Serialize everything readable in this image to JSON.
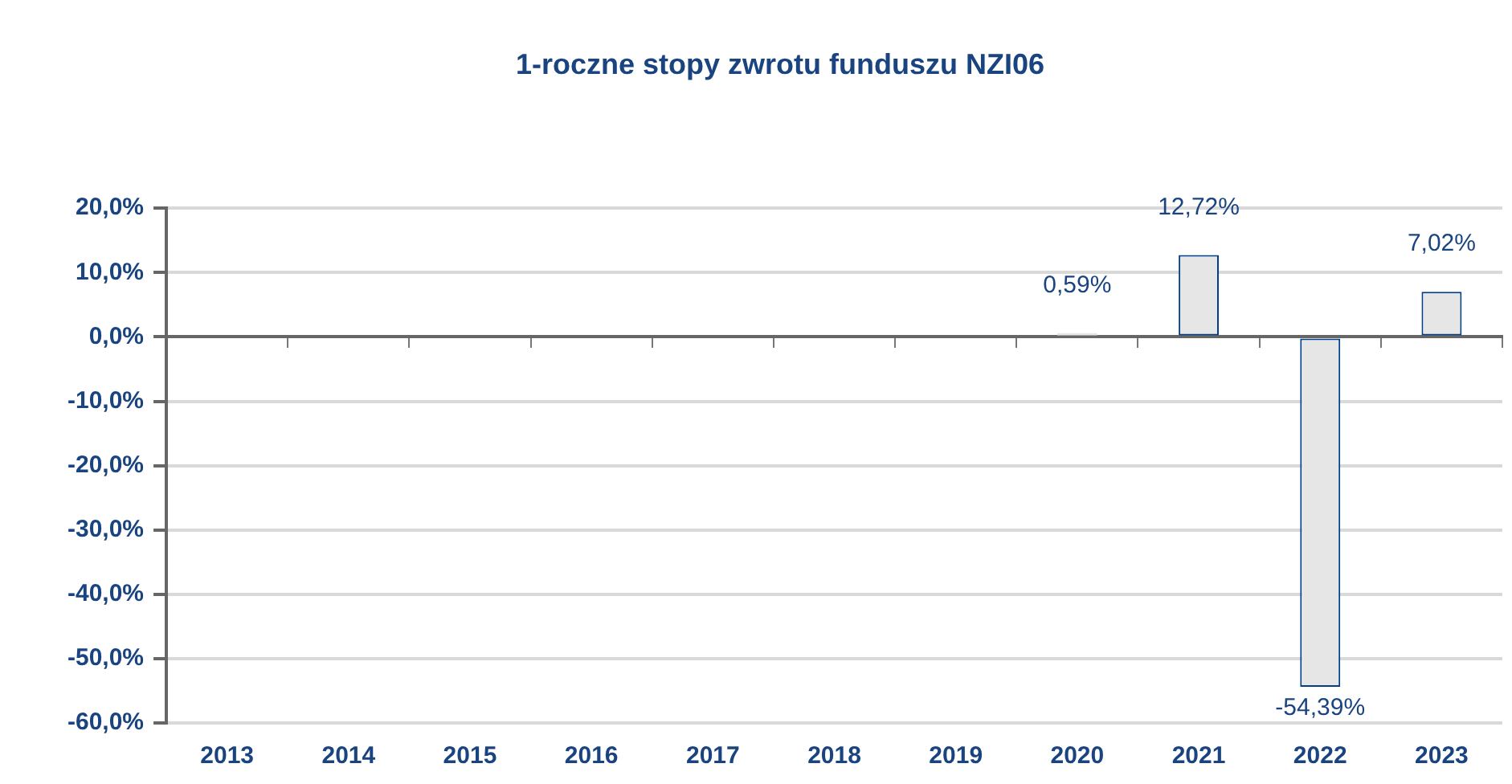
{
  "chart_data": {
    "type": "bar",
    "title": "1-roczne stopy zwrotu funduszu NZI06",
    "categories": [
      "2013",
      "2014",
      "2015",
      "2016",
      "2017",
      "2018",
      "2019",
      "2020",
      "2021",
      "2022",
      "2023"
    ],
    "series": [
      {
        "color": "#e6e6e6",
        "values": [
          null,
          null,
          null,
          null,
          null,
          null,
          null,
          0.59,
          12.72,
          -54.39,
          7.02
        ],
        "value_labels": [
          null,
          null,
          null,
          null,
          null,
          null,
          null,
          "0,59%",
          "12,72%",
          "-54,39%",
          "7,02%"
        ]
      }
    ],
    "ylim": [
      -60,
      20
    ],
    "yticks": [
      {
        "value": -60,
        "label": "-60,0%"
      },
      {
        "value": -50,
        "label": "-50,0%"
      },
      {
        "value": -40,
        "label": "-40,0%"
      },
      {
        "value": -30,
        "label": "-30,0%"
      },
      {
        "value": -20,
        "label": "-20,0%"
      },
      {
        "value": -10,
        "label": "-10,0%"
      },
      {
        "value": 0,
        "label": "0,0%"
      },
      {
        "value": 10,
        "label": "10,0%"
      },
      {
        "value": 20,
        "label": "20,0%"
      }
    ],
    "grid": "y",
    "legend": false
  }
}
